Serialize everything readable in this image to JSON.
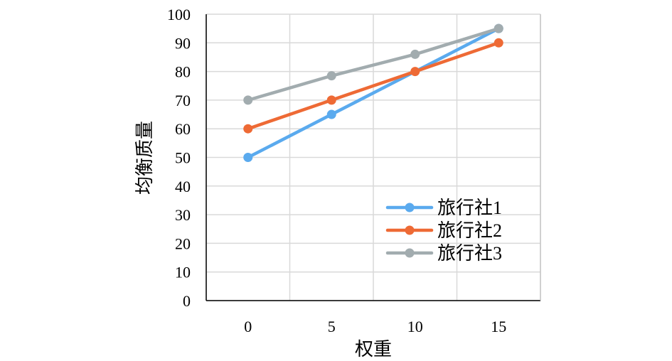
{
  "chart_data": {
    "type": "line",
    "title": "",
    "xlabel": "权重",
    "ylabel": "均衡质量",
    "x": [
      0,
      5,
      10,
      15
    ],
    "x_ticks": [
      "0",
      "5",
      "10",
      "15"
    ],
    "xlim": [
      -2.5,
      17.5
    ],
    "ylim": [
      0,
      100
    ],
    "y_ticks": [
      "0",
      "10",
      "20",
      "30",
      "40",
      "50",
      "60",
      "70",
      "80",
      "90",
      "100"
    ],
    "grid": true,
    "legend_position": "bottom-right",
    "series": [
      {
        "name": "旅行社1",
        "color": "#5aaaee",
        "values": [
          50,
          65,
          null,
          95
        ],
        "linewidth": 4.5
      },
      {
        "name": "旅行社2",
        "color": "#ee6a35",
        "values": [
          60,
          70,
          80,
          90
        ],
        "linewidth": 4.5
      },
      {
        "name": "旅行社3",
        "color": "#a2acaf",
        "values": [
          70,
          78.5,
          86,
          95
        ],
        "linewidth": 4.5
      }
    ],
    "colors": {
      "grid": "#d9d9d9",
      "axis": "#000000",
      "background": "#ffffff"
    }
  }
}
